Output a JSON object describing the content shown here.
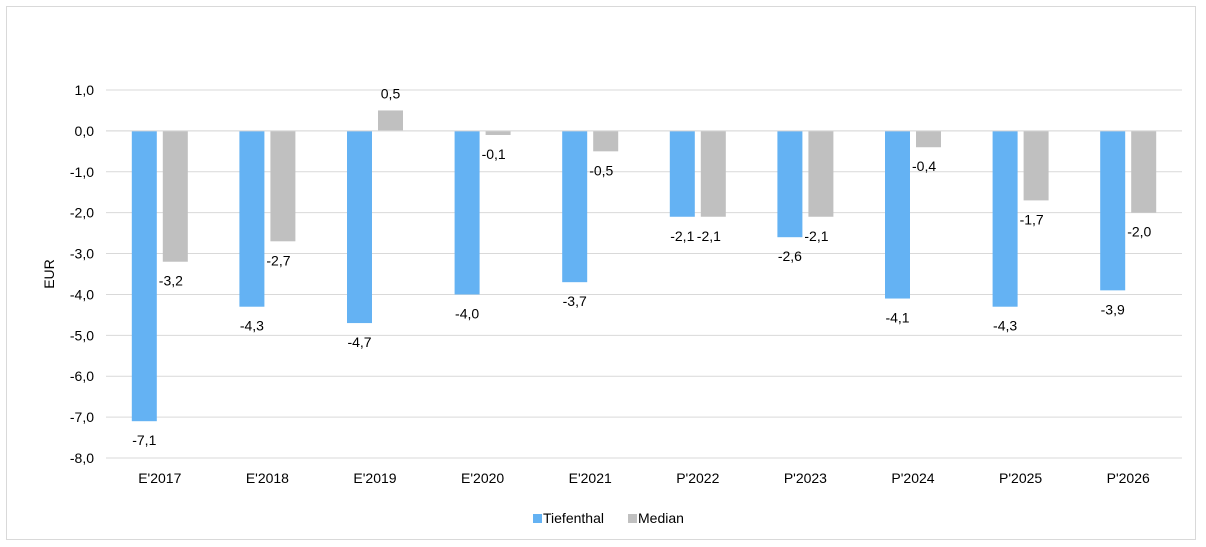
{
  "chart_data": {
    "type": "bar",
    "title": "",
    "xlabel": "",
    "ylabel": "EUR",
    "ylim": [
      -8.0,
      1.0
    ],
    "yticks": [
      "1,0",
      "0,0",
      "-1,0",
      "-2,0",
      "-3,0",
      "-4,0",
      "-5,0",
      "-6,0",
      "-7,0",
      "-8,0"
    ],
    "ytick_values": [
      1,
      0,
      -1,
      -2,
      -3,
      -4,
      -5,
      -6,
      -7,
      -8
    ],
    "categories": [
      "E'2017",
      "E'2018",
      "E'2019",
      "E'2020",
      "E'2021",
      "P'2022",
      "P'2023",
      "P'2024",
      "P'2025",
      "P'2026"
    ],
    "series": [
      {
        "name": "Tiefenthal",
        "color": "#64b2f3",
        "values": [
          -7.1,
          -4.3,
          -4.7,
          -4.0,
          -3.7,
          -2.1,
          -2.6,
          -4.1,
          -4.3,
          -3.9
        ],
        "labels": [
          "-7,1",
          "-4,3",
          "-4,7",
          "-4,0",
          "-3,7",
          "-2,1",
          "-2,6",
          "-4,1",
          "-4,3",
          "-3,9"
        ]
      },
      {
        "name": "Median",
        "color": "#c0c0c0",
        "values": [
          -3.2,
          -2.7,
          0.5,
          -0.1,
          -0.5,
          -2.1,
          -2.1,
          -0.4,
          -1.7,
          -2.0
        ],
        "labels": [
          "-3,2",
          "-2,7",
          "0,5",
          "-0,1",
          "-0,5",
          "-2,1",
          "-2,1",
          "-0,4",
          "-1,7",
          "-2,0"
        ]
      }
    ],
    "grid": true,
    "legend_position": "bottom"
  }
}
